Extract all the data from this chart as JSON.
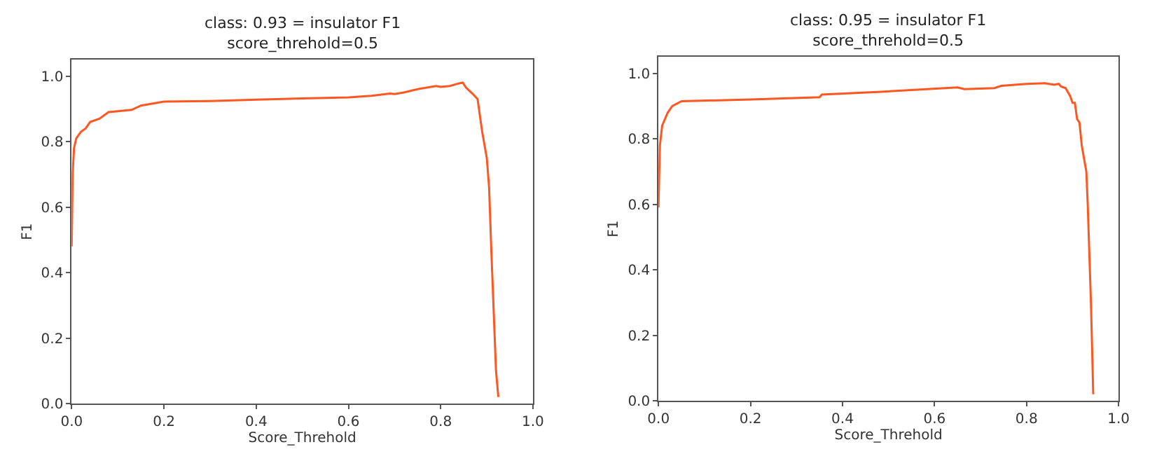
{
  "chart_data": [
    {
      "type": "line",
      "title": "class: 0.93 = insulator F1\nscore_threhold=0.5",
      "xlabel": "Score_Threhold",
      "ylabel": "F1",
      "x": [
        0.0,
        0.002,
        0.005,
        0.01,
        0.02,
        0.03,
        0.04,
        0.06,
        0.08,
        0.1,
        0.13,
        0.15,
        0.2,
        0.3,
        0.4,
        0.5,
        0.6,
        0.65,
        0.69,
        0.7,
        0.72,
        0.75,
        0.79,
        0.8,
        0.82,
        0.84,
        0.848,
        0.855,
        0.87,
        0.88,
        0.885,
        0.89,
        0.9,
        0.905,
        0.91,
        0.92,
        0.925
      ],
      "series": [
        {
          "color": "#ff5722",
          "values": [
            0.48,
            0.7,
            0.78,
            0.81,
            0.83,
            0.84,
            0.86,
            0.87,
            0.89,
            0.893,
            0.897,
            0.91,
            0.922,
            0.924,
            0.928,
            0.932,
            0.935,
            0.94,
            0.947,
            0.945,
            0.95,
            0.96,
            0.97,
            0.967,
            0.97,
            0.978,
            0.98,
            0.965,
            0.945,
            0.93,
            0.88,
            0.83,
            0.75,
            0.66,
            0.46,
            0.1,
            0.02
          ]
        }
      ],
      "xlim": [
        0,
        1
      ],
      "ylim": [
        0,
        1.05
      ],
      "xticks": [
        {
          "value": 0,
          "label": "0.0"
        },
        {
          "value": 0.2,
          "label": "0.2"
        },
        {
          "value": 0.4,
          "label": "0.4"
        },
        {
          "value": 0.6,
          "label": "0.6"
        },
        {
          "value": 0.8,
          "label": "0.8"
        },
        {
          "value": 1,
          "label": "1.0"
        }
      ],
      "yticks": [
        {
          "value": 0,
          "label": "0.0"
        },
        {
          "value": 0.2,
          "label": "0.2"
        },
        {
          "value": 0.4,
          "label": "0.4"
        },
        {
          "value": 0.6,
          "label": "0.6"
        },
        {
          "value": 0.8,
          "label": "0.8"
        },
        {
          "value": 1,
          "label": "1.0"
        }
      ]
    },
    {
      "type": "line",
      "title": "class: 0.95 = insulator F1\nscore_threhold=0.5",
      "xlabel": "Score_Threhold",
      "ylabel": "F1",
      "x": [
        0.0,
        0.003,
        0.008,
        0.02,
        0.03,
        0.05,
        0.2,
        0.35,
        0.355,
        0.5,
        0.65,
        0.665,
        0.73,
        0.745,
        0.8,
        0.84,
        0.86,
        0.87,
        0.875,
        0.885,
        0.895,
        0.9,
        0.905,
        0.91,
        0.915,
        0.92,
        0.93,
        0.933,
        0.94,
        0.945
      ],
      "series": [
        {
          "color": "#ff5722",
          "values": [
            0.59,
            0.78,
            0.84,
            0.88,
            0.9,
            0.915,
            0.92,
            0.927,
            0.935,
            0.945,
            0.957,
            0.952,
            0.955,
            0.962,
            0.968,
            0.97,
            0.965,
            0.968,
            0.96,
            0.955,
            0.93,
            0.91,
            0.91,
            0.86,
            0.85,
            0.78,
            0.7,
            0.6,
            0.3,
            0.02
          ]
        }
      ],
      "xlim": [
        0,
        1
      ],
      "ylim": [
        0,
        1.05
      ],
      "xticks": [
        {
          "value": 0,
          "label": "0.0"
        },
        {
          "value": 0.2,
          "label": "0.2"
        },
        {
          "value": 0.4,
          "label": "0.4"
        },
        {
          "value": 0.6,
          "label": "0.6"
        },
        {
          "value": 0.8,
          "label": "0.8"
        },
        {
          "value": 1,
          "label": "1.0"
        }
      ],
      "yticks": [
        {
          "value": 0,
          "label": "0.0"
        },
        {
          "value": 0.2,
          "label": "0.2"
        },
        {
          "value": 0.4,
          "label": "0.4"
        },
        {
          "value": 0.6,
          "label": "0.6"
        },
        {
          "value": 0.8,
          "label": "0.8"
        },
        {
          "value": 1,
          "label": "1.0"
        }
      ]
    }
  ]
}
